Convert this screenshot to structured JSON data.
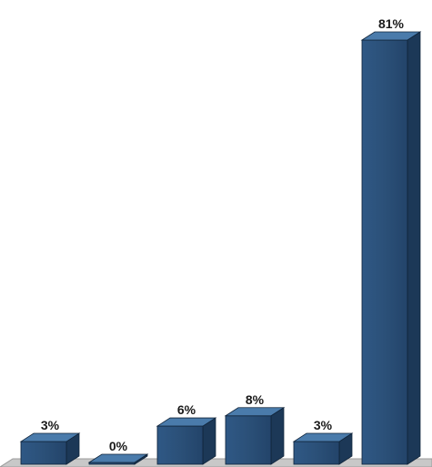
{
  "chart_data": {
    "type": "bar",
    "categories": [
      "",
      "",
      "",
      "",
      "",
      ""
    ],
    "values": [
      3,
      0,
      6,
      8,
      3,
      81
    ],
    "data_labels": [
      "3%",
      "0%",
      "6%",
      "8%",
      "3%",
      "81%"
    ],
    "ylim": [
      0,
      81
    ],
    "grid": false,
    "legend": "none",
    "style": "3d",
    "colors": {
      "bar_front": "#2b5078",
      "bar_top": "#4a7bab",
      "bar_side": "#1c3857",
      "bar_outline": "#10243a",
      "floor": "#c8c8c8",
      "floor_edge": "#9a9a9a"
    }
  }
}
